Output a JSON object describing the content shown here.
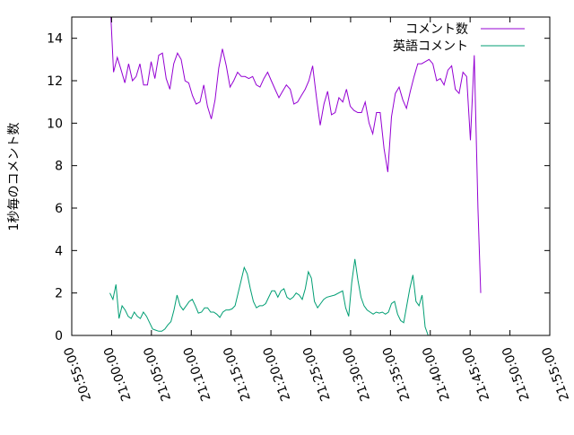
{
  "chart_data": {
    "type": "line",
    "title": "",
    "xlabel": "",
    "ylabel": "1秒毎のコメント数",
    "x_axis": {
      "type": "time",
      "range": [
        "20:55:00",
        "21:55:00"
      ],
      "tick_labels": [
        "20:55:00",
        "21:00:00",
        "21:05:00",
        "21:10:00",
        "21:15:00",
        "21:20:00",
        "21:25:00",
        "21:30:00",
        "21:35:00",
        "21:40:00",
        "21:45:00",
        "21:50:00",
        "21:55:00"
      ]
    },
    "y_axis": {
      "range": [
        0,
        15
      ],
      "tick_labels": [
        "0",
        "2",
        "4",
        "6",
        "8",
        "10",
        "12",
        "14"
      ]
    },
    "grid": false,
    "legend_position": "top-right",
    "series": [
      {
        "name": "コメント数",
        "color": "#9400d3",
        "points": [
          [
            "20:59:47",
            16.0
          ],
          [
            "21:00:15",
            12.4
          ],
          [
            "21:00:43",
            13.1
          ],
          [
            "21:01:12",
            12.5
          ],
          [
            "21:01:40",
            11.9
          ],
          [
            "21:02:08",
            12.8
          ],
          [
            "21:02:37",
            12.0
          ],
          [
            "21:03:05",
            12.2
          ],
          [
            "21:03:33",
            12.8
          ],
          [
            "21:04:01",
            11.8
          ],
          [
            "21:04:30",
            11.8
          ],
          [
            "21:04:58",
            12.9
          ],
          [
            "21:05:26",
            12.1
          ],
          [
            "21:05:55",
            13.2
          ],
          [
            "21:06:23",
            13.3
          ],
          [
            "21:06:51",
            12.1
          ],
          [
            "21:07:19",
            11.6
          ],
          [
            "21:07:48",
            12.8
          ],
          [
            "21:08:16",
            13.3
          ],
          [
            "21:08:44",
            13.0
          ],
          [
            "21:09:13",
            12.0
          ],
          [
            "21:09:41",
            11.9
          ],
          [
            "21:10:09",
            11.3
          ],
          [
            "21:10:37",
            10.9
          ],
          [
            "21:11:06",
            11.0
          ],
          [
            "21:11:34",
            11.8
          ],
          [
            "21:12:02",
            10.8
          ],
          [
            "21:12:31",
            10.2
          ],
          [
            "21:12:59",
            11.1
          ],
          [
            "21:13:27",
            12.6
          ],
          [
            "21:13:55",
            13.5
          ],
          [
            "21:14:24",
            12.7
          ],
          [
            "21:14:52",
            11.7
          ],
          [
            "21:15:20",
            12.0
          ],
          [
            "21:15:49",
            12.4
          ],
          [
            "21:16:17",
            12.2
          ],
          [
            "21:16:45",
            12.2
          ],
          [
            "21:17:13",
            12.1
          ],
          [
            "21:17:42",
            12.2
          ],
          [
            "21:18:10",
            11.8
          ],
          [
            "21:18:38",
            11.7
          ],
          [
            "21:19:07",
            12.1
          ],
          [
            "21:19:35",
            12.4
          ],
          [
            "21:20:03",
            12.0
          ],
          [
            "21:20:31",
            11.6
          ],
          [
            "21:21:00",
            11.2
          ],
          [
            "21:21:28",
            11.5
          ],
          [
            "21:21:56",
            11.8
          ],
          [
            "21:22:25",
            11.6
          ],
          [
            "21:22:53",
            10.9
          ],
          [
            "21:23:21",
            11.0
          ],
          [
            "21:23:49",
            11.3
          ],
          [
            "21:24:18",
            11.6
          ],
          [
            "21:24:46",
            12.0
          ],
          [
            "21:25:14",
            12.7
          ],
          [
            "21:25:43",
            11.2
          ],
          [
            "21:26:11",
            9.9
          ],
          [
            "21:26:39",
            10.9
          ],
          [
            "21:27:07",
            11.5
          ],
          [
            "21:27:36",
            10.4
          ],
          [
            "21:28:04",
            10.5
          ],
          [
            "21:28:32",
            11.2
          ],
          [
            "21:29:01",
            11.0
          ],
          [
            "21:29:29",
            11.6
          ],
          [
            "21:29:57",
            10.8
          ],
          [
            "21:30:25",
            10.6
          ],
          [
            "21:30:54",
            10.5
          ],
          [
            "21:31:22",
            10.5
          ],
          [
            "21:31:50",
            11.0
          ],
          [
            "21:32:19",
            10.0
          ],
          [
            "21:32:47",
            9.5
          ],
          [
            "21:33:15",
            10.5
          ],
          [
            "21:33:43",
            10.5
          ],
          [
            "21:34:12",
            8.8
          ],
          [
            "21:34:40",
            7.7
          ],
          [
            "21:35:08",
            10.3
          ],
          [
            "21:35:37",
            11.4
          ],
          [
            "21:36:05",
            11.7
          ],
          [
            "21:36:33",
            11.1
          ],
          [
            "21:37:01",
            10.7
          ],
          [
            "21:37:30",
            11.5
          ],
          [
            "21:37:58",
            12.2
          ],
          [
            "21:38:26",
            12.8
          ],
          [
            "21:38:55",
            12.8
          ],
          [
            "21:39:23",
            12.9
          ],
          [
            "21:39:51",
            13.0
          ],
          [
            "21:40:19",
            12.8
          ],
          [
            "21:40:48",
            12.0
          ],
          [
            "21:41:16",
            12.1
          ],
          [
            "21:41:44",
            11.8
          ],
          [
            "21:42:13",
            12.5
          ],
          [
            "21:42:41",
            12.7
          ],
          [
            "21:43:09",
            11.6
          ],
          [
            "21:43:37",
            11.4
          ],
          [
            "21:44:06",
            12.4
          ],
          [
            "21:44:34",
            12.2
          ],
          [
            "21:45:02",
            9.2
          ],
          [
            "21:45:31",
            13.2
          ],
          [
            "21:45:59",
            6.0
          ],
          [
            "21:46:20",
            2.0
          ]
        ]
      },
      {
        "name": "英語コメント",
        "color": "#009e73",
        "points": [
          [
            "20:59:47",
            2.0
          ],
          [
            "21:00:10",
            1.7
          ],
          [
            "21:00:33",
            2.4
          ],
          [
            "21:00:56",
            0.8
          ],
          [
            "21:01:19",
            1.4
          ],
          [
            "21:01:42",
            1.2
          ],
          [
            "21:02:05",
            0.9
          ],
          [
            "21:02:28",
            0.8
          ],
          [
            "21:02:51",
            1.1
          ],
          [
            "21:03:14",
            0.9
          ],
          [
            "21:03:37",
            0.8
          ],
          [
            "21:04:00",
            1.1
          ],
          [
            "21:04:23",
            0.9
          ],
          [
            "21:04:46",
            0.6
          ],
          [
            "21:05:09",
            0.3
          ],
          [
            "21:05:32",
            0.25
          ],
          [
            "21:05:55",
            0.2
          ],
          [
            "21:06:18",
            0.2
          ],
          [
            "21:06:41",
            0.3
          ],
          [
            "21:07:04",
            0.5
          ],
          [
            "21:07:27",
            0.65
          ],
          [
            "21:07:50",
            1.2
          ],
          [
            "21:08:13",
            1.9
          ],
          [
            "21:08:36",
            1.4
          ],
          [
            "21:08:59",
            1.2
          ],
          [
            "21:09:22",
            1.4
          ],
          [
            "21:09:45",
            1.6
          ],
          [
            "21:10:08",
            1.7
          ],
          [
            "21:10:31",
            1.4
          ],
          [
            "21:10:54",
            1.05
          ],
          [
            "21:11:17",
            1.1
          ],
          [
            "21:11:40",
            1.3
          ],
          [
            "21:12:03",
            1.3
          ],
          [
            "21:12:26",
            1.1
          ],
          [
            "21:12:49",
            1.1
          ],
          [
            "21:13:12",
            1.0
          ],
          [
            "21:13:35",
            0.85
          ],
          [
            "21:13:58",
            1.1
          ],
          [
            "21:14:21",
            1.2
          ],
          [
            "21:14:44",
            1.2
          ],
          [
            "21:15:07",
            1.25
          ],
          [
            "21:15:30",
            1.4
          ],
          [
            "21:15:53",
            2.0
          ],
          [
            "21:16:16",
            2.6
          ],
          [
            "21:16:39",
            3.2
          ],
          [
            "21:17:02",
            2.9
          ],
          [
            "21:17:25",
            2.2
          ],
          [
            "21:17:48",
            1.6
          ],
          [
            "21:18:11",
            1.3
          ],
          [
            "21:18:34",
            1.4
          ],
          [
            "21:18:57",
            1.4
          ],
          [
            "21:19:20",
            1.5
          ],
          [
            "21:19:43",
            1.8
          ],
          [
            "21:20:06",
            2.1
          ],
          [
            "21:20:29",
            2.1
          ],
          [
            "21:20:52",
            1.8
          ],
          [
            "21:21:15",
            2.1
          ],
          [
            "21:21:38",
            2.2
          ],
          [
            "21:22:01",
            1.8
          ],
          [
            "21:22:24",
            1.7
          ],
          [
            "21:22:47",
            1.8
          ],
          [
            "21:23:10",
            2.0
          ],
          [
            "21:23:33",
            1.9
          ],
          [
            "21:23:56",
            1.7
          ],
          [
            "21:24:19",
            2.2
          ],
          [
            "21:24:42",
            3.0
          ],
          [
            "21:25:05",
            2.7
          ],
          [
            "21:25:28",
            1.6
          ],
          [
            "21:25:51",
            1.3
          ],
          [
            "21:26:14",
            1.5
          ],
          [
            "21:26:37",
            1.7
          ],
          [
            "21:27:00",
            1.8
          ],
          [
            "21:28:00",
            1.9
          ],
          [
            "21:29:00",
            2.1
          ],
          [
            "21:29:23",
            1.3
          ],
          [
            "21:29:46",
            0.9
          ],
          [
            "21:30:09",
            2.5
          ],
          [
            "21:30:32",
            3.6
          ],
          [
            "21:30:55",
            2.6
          ],
          [
            "21:31:18",
            1.8
          ],
          [
            "21:31:41",
            1.4
          ],
          [
            "21:32:04",
            1.2
          ],
          [
            "21:32:27",
            1.1
          ],
          [
            "21:32:50",
            1.0
          ],
          [
            "21:33:13",
            1.1
          ],
          [
            "21:33:36",
            1.05
          ],
          [
            "21:33:59",
            1.1
          ],
          [
            "21:34:22",
            1.0
          ],
          [
            "21:34:45",
            1.1
          ],
          [
            "21:35:08",
            1.5
          ],
          [
            "21:35:31",
            1.6
          ],
          [
            "21:35:54",
            1.0
          ],
          [
            "21:36:17",
            0.7
          ],
          [
            "21:36:40",
            0.6
          ],
          [
            "21:37:03",
            1.4
          ],
          [
            "21:37:26",
            2.2
          ],
          [
            "21:37:49",
            2.85
          ],
          [
            "21:38:12",
            1.6
          ],
          [
            "21:38:35",
            1.4
          ],
          [
            "21:38:58",
            1.9
          ],
          [
            "21:39:21",
            0.4
          ],
          [
            "21:39:44",
            0.0
          ]
        ]
      }
    ]
  }
}
